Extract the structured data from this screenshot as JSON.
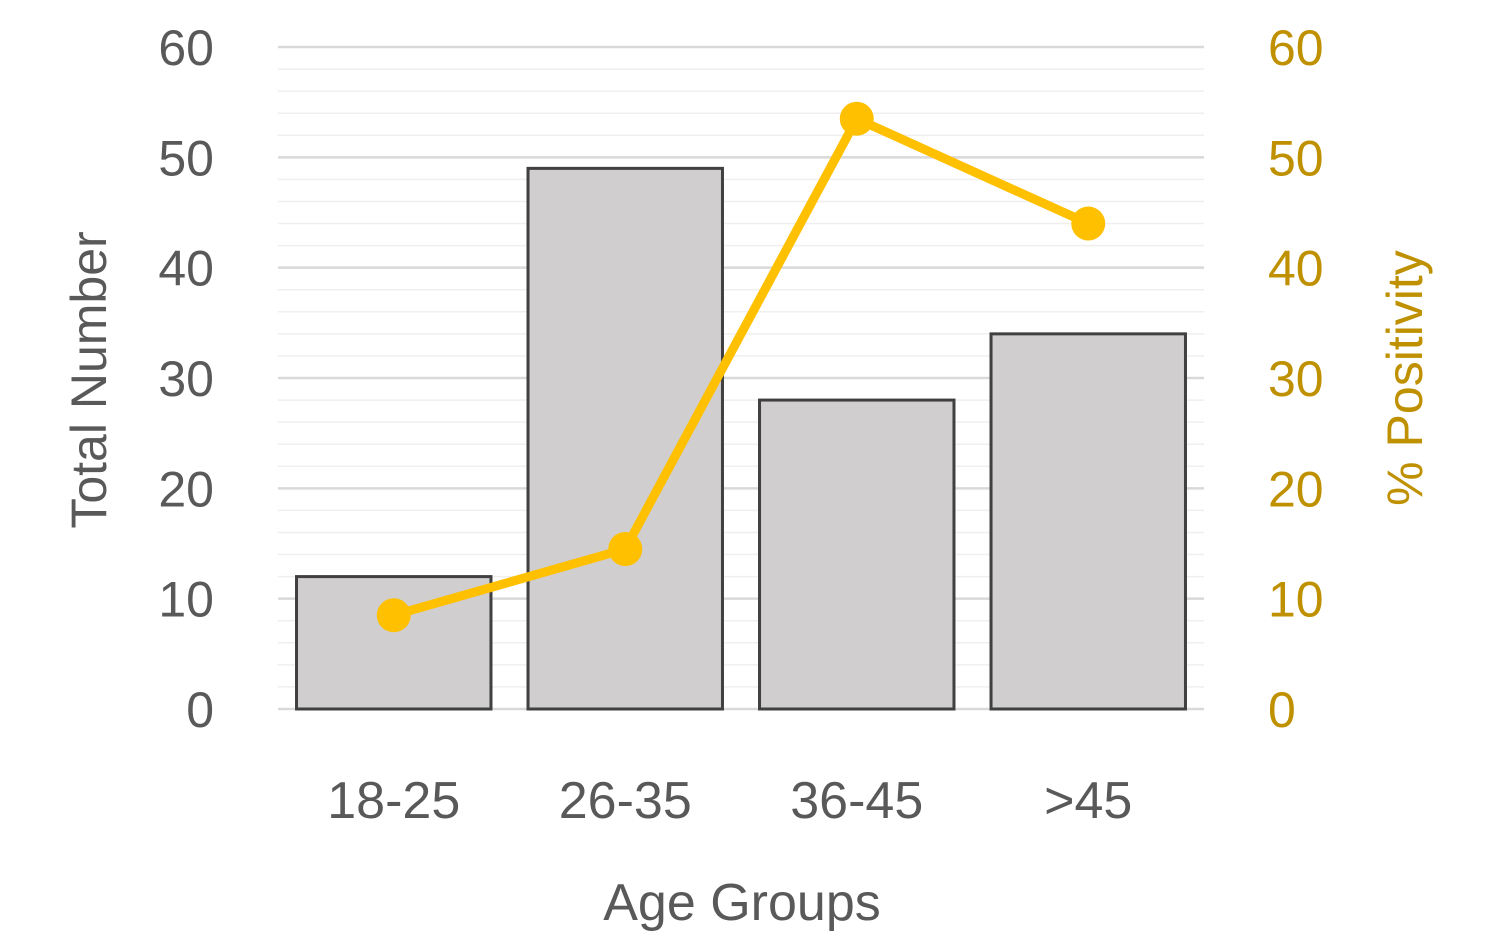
{
  "chart_data": {
    "type": "bar",
    "categories": [
      "18-25",
      "26-35",
      "36-45",
      ">45"
    ],
    "series": [
      {
        "type": "bar",
        "axis": "left",
        "values": [
          12,
          49,
          28,
          34
        ],
        "color": "#d0cece",
        "stroke": "#404040"
      },
      {
        "type": "line",
        "axis": "right",
        "values": [
          8.5,
          14.5,
          53.5,
          44
        ],
        "color": "#ffc000"
      }
    ],
    "xlabel": "Age Groups",
    "ylabel": "Total Number",
    "y2label": "% Positivity",
    "ylim": [
      0,
      60
    ],
    "y2lim": [
      0,
      60
    ],
    "yticks": [
      "0",
      "10",
      "20",
      "30",
      "40",
      "50",
      "60"
    ],
    "y2ticks": [
      "0",
      "10",
      "20",
      "30",
      "40",
      "50",
      "60"
    ],
    "grid": true,
    "legend": "none",
    "colors": {
      "left_text": "#595959",
      "right_text": "#bf9000",
      "gridline": "#d9d9d9"
    }
  }
}
